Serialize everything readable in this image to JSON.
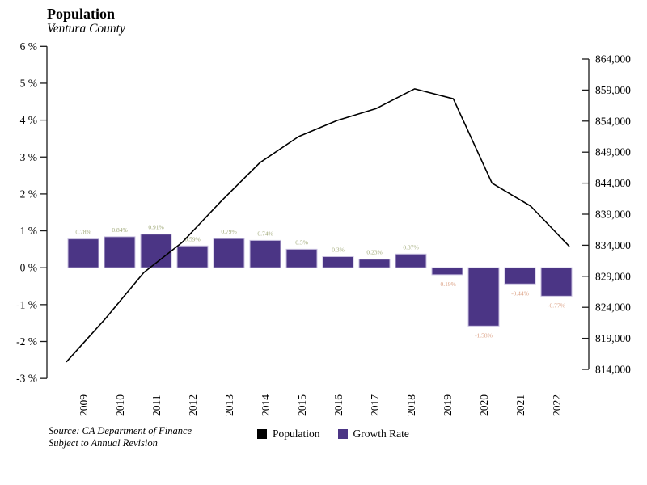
{
  "header": {
    "title": "Population",
    "subtitle": "Ventura County"
  },
  "footer": {
    "source_line1": "Source: CA Department of Finance",
    "source_line2": "Subject to Annual Revision"
  },
  "legend": {
    "items": [
      {
        "label": "Population",
        "color": "#000000"
      },
      {
        "label": "Growth Rate",
        "color": "#4b3585"
      }
    ]
  },
  "colors": {
    "bar_fill": "#4b3585",
    "bar_stroke": "#c9c0e0",
    "line": "#000000",
    "positive_label": "#a2ab7b",
    "negative_label": "#dca286",
    "axis": "#1a1a1a"
  },
  "chart_data": {
    "type": "combo",
    "title": "Population",
    "subtitle": "Ventura County",
    "categories": [
      "2009",
      "2010",
      "2011",
      "2012",
      "2013",
      "2014",
      "2015",
      "2016",
      "2017",
      "2018",
      "2019",
      "2020",
      "2021",
      "2022"
    ],
    "series": [
      {
        "name": "Population",
        "type": "line",
        "axis": "right",
        "color": "#000000",
        "values": [
          815200,
          822100,
          829600,
          834500,
          841100,
          847300,
          851500,
          854100,
          856000,
          859200,
          857600,
          844000,
          840300,
          833800
        ]
      },
      {
        "name": "Growth Rate",
        "type": "bar",
        "axis": "left",
        "color": "#4b3585",
        "values": [
          0.78,
          0.84,
          0.91,
          0.59,
          0.79,
          0.74,
          0.5,
          0.3,
          0.23,
          0.37,
          -0.19,
          -1.58,
          -0.44,
          -0.77
        ],
        "labels": [
          "0.78%",
          "0.84%",
          "0.91%",
          "0.59%",
          "0.79%",
          "0.74%",
          "0.5%",
          "0.3%",
          "0.23%",
          "0.37%",
          "-0.19%",
          "-1.58%",
          "-0.44%",
          "-0.77%"
        ]
      }
    ],
    "left_axis": {
      "unit": "%",
      "range": [
        -3,
        6
      ],
      "tick_values": [
        6,
        5,
        4,
        3,
        2,
        1,
        0,
        -1,
        -2,
        -3
      ],
      "tick_labels": [
        "6 %",
        "5 %",
        "4 %",
        "3 %",
        "2 %",
        "1 %",
        "0 %",
        "-1 %",
        "-2 %",
        "-3 %"
      ]
    },
    "right_axis": {
      "range": [
        814000,
        864000
      ],
      "tick_values": [
        864000,
        859000,
        854000,
        849000,
        844000,
        839000,
        834000,
        829000,
        824000,
        819000,
        814000
      ],
      "tick_labels": [
        "864,000",
        "859,000",
        "854,000",
        "849,000",
        "844,000",
        "839,000",
        "834,000",
        "829,000",
        "824,000",
        "819,000",
        "814,000"
      ]
    },
    "grid": false,
    "legend_position": "bottom"
  }
}
